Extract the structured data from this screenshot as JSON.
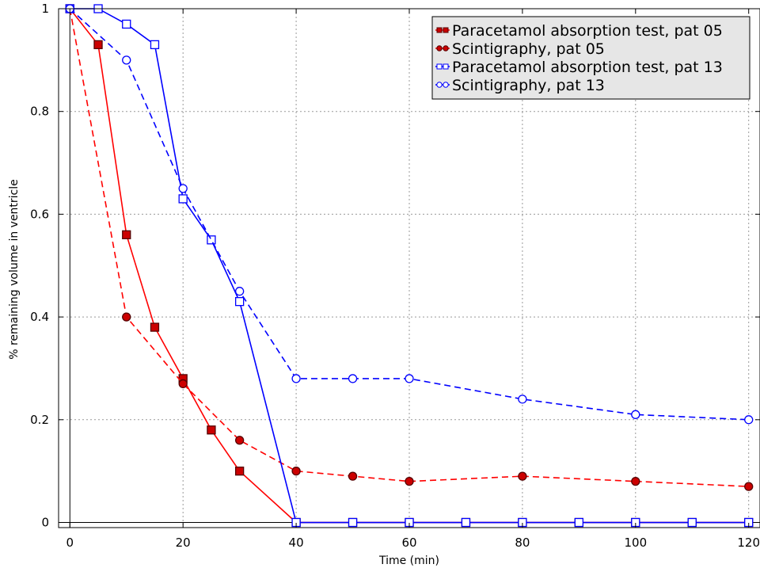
{
  "chart_data": {
    "type": "line",
    "xlabel": "Time (min)",
    "ylabel": "% remaining volume in ventricle",
    "xlim": [
      -2,
      122
    ],
    "ylim": [
      -0.01,
      1.0
    ],
    "x_ticks": [
      0,
      20,
      40,
      60,
      80,
      100,
      120
    ],
    "y_ticks": [
      0,
      0.2,
      0.4,
      0.6,
      0.8,
      1
    ],
    "x_tick_labels": [
      "0",
      "20",
      "40",
      "60",
      "80",
      "100",
      "120"
    ],
    "y_tick_labels": [
      "0",
      "0.2",
      "0.4",
      "0.6",
      "0.8",
      "1"
    ],
    "grid": true,
    "legend_position": "top-right",
    "series": [
      {
        "name": "Paracetamol absorption test, pat 05",
        "color": "#ff0000",
        "line_style": "solid",
        "marker": "square",
        "marker_fill": "#cc0000",
        "x": [
          0,
          5,
          10,
          15,
          20,
          25,
          30,
          40,
          50,
          60,
          70,
          80,
          90,
          100,
          110,
          120
        ],
        "y": [
          1.0,
          0.93,
          0.56,
          0.38,
          0.28,
          0.18,
          0.1,
          0.0,
          0.0,
          0.0,
          0.0,
          0.0,
          0.0,
          0.0,
          0.0,
          0.0
        ]
      },
      {
        "name": "Scintigraphy, pat 05",
        "color": "#ff0000",
        "line_style": "dashed",
        "marker": "circle",
        "marker_fill": "#cc0000",
        "x": [
          0,
          10,
          20,
          30,
          40,
          50,
          60,
          80,
          100,
          120
        ],
        "y": [
          1.0,
          0.4,
          0.27,
          0.16,
          0.1,
          0.09,
          0.08,
          0.09,
          0.08,
          0.07
        ]
      },
      {
        "name": "Paracetamol absorption test, pat 13",
        "color": "#0000ff",
        "line_style": "solid",
        "marker": "square-open",
        "marker_fill": "#ffffff",
        "x": [
          0,
          5,
          10,
          15,
          20,
          25,
          30,
          40,
          50,
          60,
          70,
          80,
          90,
          100,
          110,
          120
        ],
        "y": [
          1.0,
          1.0,
          0.97,
          0.93,
          0.63,
          0.55,
          0.43,
          0.0,
          0.0,
          0.0,
          0.0,
          0.0,
          0.0,
          0.0,
          0.0,
          0.0
        ]
      },
      {
        "name": "Scintigraphy, pat 13",
        "color": "#0000ff",
        "line_style": "dashed",
        "marker": "circle-open",
        "marker_fill": "#ffffff",
        "x": [
          0,
          10,
          20,
          30,
          40,
          50,
          60,
          80,
          100,
          120
        ],
        "y": [
          1.0,
          0.9,
          0.65,
          0.45,
          0.28,
          0.28,
          0.28,
          0.24,
          0.21,
          0.2
        ]
      }
    ]
  }
}
